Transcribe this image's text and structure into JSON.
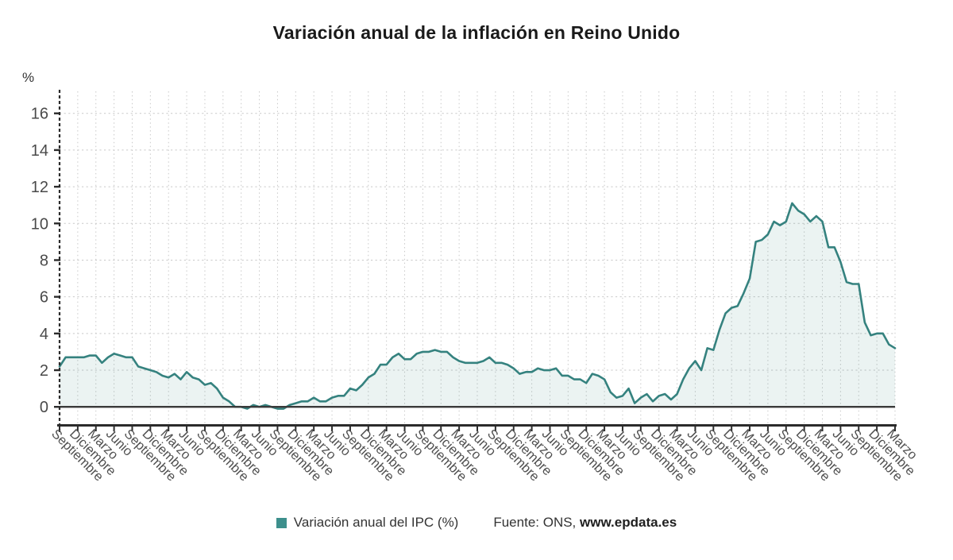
{
  "title": "Variación anual de la inflación en Reino Unido",
  "y_unit_label": "%",
  "legend": {
    "series_label": "Variación anual del IPC (%)",
    "source_prefix": "Fuente: ONS,",
    "source_link": "www.epdata.es"
  },
  "colors": {
    "line": "#35827f",
    "fill": "rgba(61,133,129,0.10)",
    "legend_swatch": "#3d8f8c",
    "grid": "#c9c9c9",
    "axis": "#2b2b2b",
    "zero_line": "#3a3a3a",
    "tick_label": "#4a4a4a",
    "x_tick_label": "#4f4f4f"
  },
  "chart_data": {
    "type": "area",
    "title": "Variación anual de la inflación en Reino Unido",
    "xlabel": "",
    "ylabel": "%",
    "ylim": [
      -0.9,
      17.2
    ],
    "yticks": [
      0,
      2,
      4,
      6,
      8,
      10,
      12,
      14,
      16
    ],
    "grid": true,
    "legend_position": "bottom",
    "legend_entries": [
      "Variación anual del IPC (%)"
    ],
    "source_text": "Fuente: ONS, www.epdata.es",
    "tick_every_months": 3,
    "x_tick_labels": [
      "Septiembre",
      "Diciembre",
      "Marzo",
      "Junio",
      "Septiembre",
      "Diciembre",
      "Marzo",
      "Junio",
      "Septiembre",
      "Diciembre",
      "Marzo",
      "Junio",
      "Septiembre",
      "Diciembre",
      "Marzo",
      "Junio",
      "Septiembre",
      "Diciembre",
      "Marzo",
      "Junio",
      "Septiembre",
      "Diciembre",
      "Marzo",
      "Junio",
      "Septiembre",
      "Diciembre",
      "Marzo",
      "Junio",
      "Septiembre",
      "Diciembre",
      "Marzo",
      "Junio",
      "Septiembre",
      "Diciembre",
      "Marzo",
      "Junio",
      "Septiembre",
      "Diciembre",
      "Marzo",
      "Junio",
      "Septiembre",
      "Diciembre",
      "Marzo",
      "Junio",
      "Septiembre",
      "Diciembre",
      "Marzo"
    ],
    "values": [
      2.2,
      2.7,
      2.7,
      2.7,
      2.7,
      2.8,
      2.8,
      2.4,
      2.7,
      2.9,
      2.8,
      2.7,
      2.7,
      2.2,
      2.1,
      2.0,
      1.9,
      1.7,
      1.6,
      1.8,
      1.5,
      1.9,
      1.6,
      1.5,
      1.2,
      1.3,
      1.0,
      0.5,
      0.3,
      0.0,
      0.0,
      -0.1,
      0.1,
      0.0,
      0.1,
      0.0,
      -0.1,
      -0.1,
      0.1,
      0.2,
      0.3,
      0.3,
      0.5,
      0.3,
      0.3,
      0.5,
      0.6,
      0.6,
      1.0,
      0.9,
      1.2,
      1.6,
      1.8,
      2.3,
      2.3,
      2.7,
      2.9,
      2.6,
      2.6,
      2.9,
      3.0,
      3.0,
      3.1,
      3.0,
      3.0,
      2.7,
      2.5,
      2.4,
      2.4,
      2.4,
      2.5,
      2.7,
      2.4,
      2.4,
      2.3,
      2.1,
      1.8,
      1.9,
      1.9,
      2.1,
      2.0,
      2.0,
      2.1,
      1.7,
      1.7,
      1.5,
      1.5,
      1.3,
      1.8,
      1.7,
      1.5,
      0.8,
      0.5,
      0.6,
      1.0,
      0.2,
      0.5,
      0.7,
      0.3,
      0.6,
      0.7,
      0.4,
      0.7,
      1.5,
      2.1,
      2.5,
      2.0,
      3.2,
      3.1,
      4.2,
      5.1,
      5.4,
      5.5,
      6.2,
      7.0,
      9.0,
      9.1,
      9.4,
      10.1,
      9.9,
      10.1,
      11.1,
      10.7,
      10.5,
      10.1,
      10.4,
      10.1,
      8.7,
      8.7,
      7.9,
      6.8,
      6.7,
      6.7,
      4.6,
      3.9,
      4.0,
      4.0,
      3.4,
      3.2
    ]
  }
}
